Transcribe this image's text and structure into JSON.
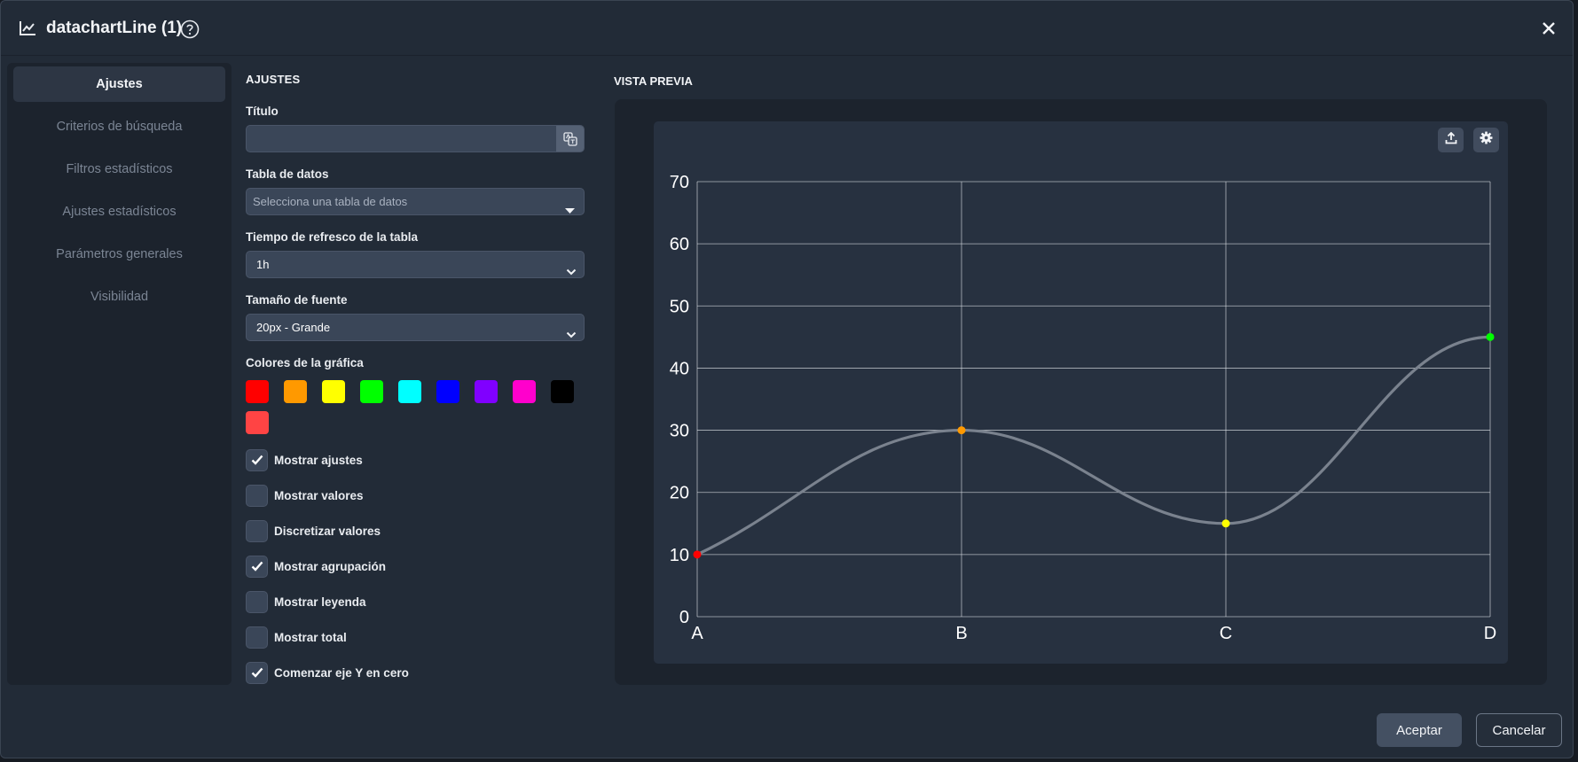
{
  "header": {
    "title": "datachartLine (1)",
    "title_icon": "line-chart-icon",
    "help_icon": "help-circle-icon",
    "close_icon": "close-icon"
  },
  "sidebar": {
    "items": [
      {
        "label": "Ajustes",
        "active": true
      },
      {
        "label": "Criterios de búsqueda",
        "active": false
      },
      {
        "label": "Filtros estadísticos",
        "active": false
      },
      {
        "label": "Ajustes estadísticos",
        "active": false
      },
      {
        "label": "Parámetros generales",
        "active": false
      },
      {
        "label": "Visibilidad",
        "active": false
      }
    ]
  },
  "settings": {
    "section_title": "AJUSTES",
    "title_label": "Título",
    "title_value": "",
    "title_addon_icon": "translate-icon",
    "table_label": "Tabla de datos",
    "table_placeholder": "Selecciona una tabla de datos",
    "refresh_label": "Tiempo de refresco de la tabla",
    "refresh_value": "1h",
    "font_label": "Tamaño de fuente",
    "font_value": "20px - Grande",
    "colors_label": "Colores de la gráfica",
    "colors": [
      "#ff0000",
      "#ff9900",
      "#ffff00",
      "#00ff00",
      "#00ffff",
      "#0000ff",
      "#8000ff",
      "#ff00cc",
      "#000000",
      "#ff4444"
    ],
    "checkboxes": [
      {
        "label": "Mostrar ajustes",
        "checked": true
      },
      {
        "label": "Mostrar valores",
        "checked": false
      },
      {
        "label": "Discretizar valores",
        "checked": false
      },
      {
        "label": "Mostrar agrupación",
        "checked": true
      },
      {
        "label": "Mostrar leyenda",
        "checked": false
      },
      {
        "label": "Mostrar total",
        "checked": false
      },
      {
        "label": "Comenzar eje Y en cero",
        "checked": true
      }
    ]
  },
  "preview": {
    "title": "VISTA PREVIA",
    "export_icon": "upload-icon",
    "settings_icon": "gear-icon"
  },
  "chart_data": {
    "type": "line",
    "categories": [
      "A",
      "B",
      "C",
      "D"
    ],
    "series": [
      {
        "values": [
          10,
          30,
          15,
          45
        ]
      }
    ],
    "point_colors": [
      "#ff0000",
      "#ff9900",
      "#ffff00",
      "#00ff00"
    ],
    "line_color": "#7a828e",
    "ylim": [
      0,
      70
    ],
    "yticks": [
      0,
      10,
      20,
      30,
      40,
      50,
      60,
      70
    ],
    "grid": true,
    "legend": "none",
    "title": "",
    "xlabel": "",
    "ylabel": ""
  },
  "footer": {
    "accept_label": "Aceptar",
    "cancel_label": "Cancelar"
  }
}
